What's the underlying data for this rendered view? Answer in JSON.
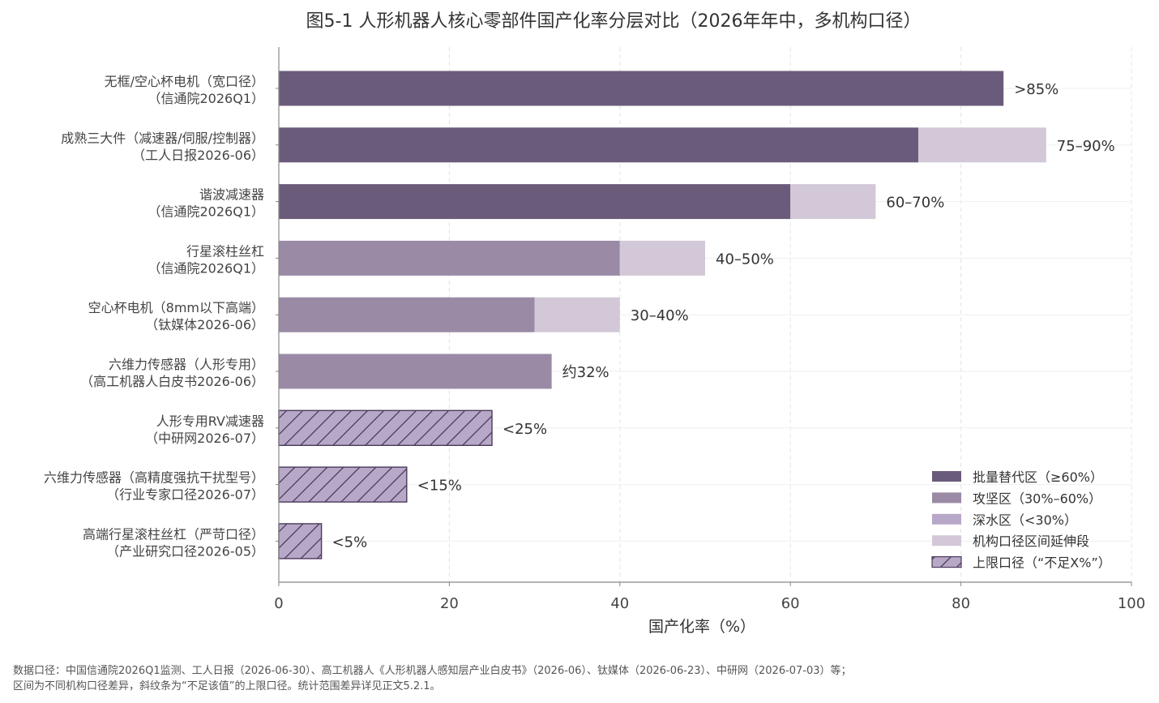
{
  "chart_data": {
    "type": "bar",
    "orientation": "horizontal",
    "title": "图5-1  人形机器人核心零部件国产化率分层对比（2026年年中，多机构口径）",
    "xlabel": "国产化率（%）",
    "ylabel": "",
    "xlim": [
      0,
      100
    ],
    "xticks": [
      0,
      20,
      40,
      60,
      80,
      100
    ],
    "grid": true,
    "legend_position": "bottom-right",
    "colors": {
      "batch": "#6b5b7b",
      "attack": "#9a8aa6",
      "deep": "#b8a8c8",
      "extension": "#d2c8d8",
      "hatch_fill": "#b8a8c8",
      "hatch_stroke": "#4a3a5a"
    },
    "categories": [
      {
        "line1": "无框/空心杯电机（宽口径）",
        "line2": "（信通院2026Q1）",
        "base": 85,
        "ext": 0,
        "tier": "batch",
        "hatched": false,
        "label": ">85%"
      },
      {
        "line1": "成熟三大件（减速器/伺服/控制器）",
        "line2": "（工人日报2026-06）",
        "base": 75,
        "ext": 15,
        "tier": "batch",
        "hatched": false,
        "label": "75–90%"
      },
      {
        "line1": "谐波减速器",
        "line2": "（信通院2026Q1）",
        "base": 60,
        "ext": 10,
        "tier": "batch",
        "hatched": false,
        "label": "60–70%"
      },
      {
        "line1": "行星滚柱丝杠",
        "line2": "（信通院2026Q1）",
        "base": 40,
        "ext": 10,
        "tier": "attack",
        "hatched": false,
        "label": "40–50%"
      },
      {
        "line1": "空心杯电机（8mm以下高端）",
        "line2": "（钛媒体2026-06）",
        "base": 30,
        "ext": 10,
        "tier": "attack",
        "hatched": false,
        "label": "30–40%"
      },
      {
        "line1": "六维力传感器（人形专用）",
        "line2": "（高工机器人白皮书2026-06）",
        "base": 32,
        "ext": 0,
        "tier": "attack",
        "hatched": false,
        "label": "约32%"
      },
      {
        "line1": "人形专用RV减速器",
        "line2": "（中研网2026-07）",
        "base": 25,
        "ext": 0,
        "tier": "deep",
        "hatched": true,
        "label": "<25%"
      },
      {
        "line1": "六维力传感器（高精度强抗干扰型号）",
        "line2": "（行业专家口径2026-07）",
        "base": 15,
        "ext": 0,
        "tier": "deep",
        "hatched": true,
        "label": "<15%"
      },
      {
        "line1": "高端行星滚柱丝杠（严苛口径）",
        "line2": "（产业研究口径2026-05）",
        "base": 5,
        "ext": 0,
        "tier": "deep",
        "hatched": true,
        "label": "<5%"
      }
    ],
    "legend": [
      {
        "key": "batch",
        "label": "批量替代区（≥60%）"
      },
      {
        "key": "attack",
        "label": "攻坚区（30%–60%）"
      },
      {
        "key": "deep",
        "label": "深水区（<30%）"
      },
      {
        "key": "extension",
        "label": "机构口径区间延伸段"
      },
      {
        "key": "hatch",
        "label": "上限口径（“不足X%”）"
      }
    ]
  },
  "footnote": {
    "line1": "数据口径：中国信通院2026Q1监测、工人日报（2026-06-30）、高工机器人《人形机器人感知层产业白皮书》（2026-06）、钛媒体（2026-06-23）、中研网（2026-07-03）等；",
    "line2": "区间为不同机构口径差异，斜纹条为“不足该值”的上限口径。统计范围差异详见正文5.2.1。"
  }
}
